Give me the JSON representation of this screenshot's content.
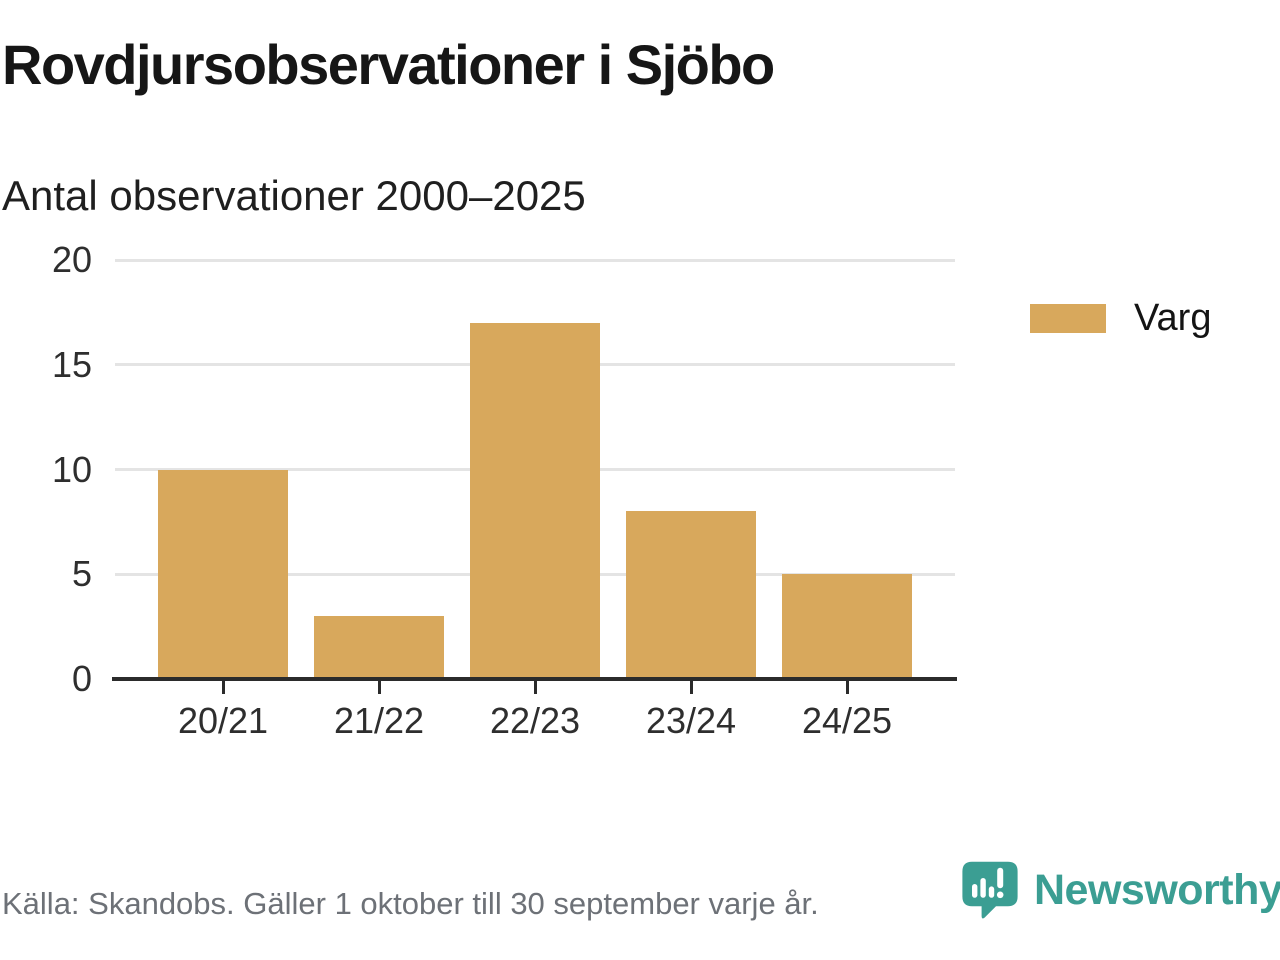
{
  "title": "Rovdjursobservationer i Sjöbo",
  "subtitle": "Antal observationer 2000–2025",
  "chart_data": {
    "type": "bar",
    "title": "Rovdjursobservationer i Sjöbo",
    "subtitle": "Antal observationer 2000–2025",
    "categories": [
      "20/21",
      "21/22",
      "22/23",
      "23/24",
      "24/25"
    ],
    "series": [
      {
        "name": "Varg",
        "values": [
          10,
          3,
          17,
          8,
          5
        ],
        "color": "#d8a85c"
      }
    ],
    "xlabel": "",
    "ylabel": "",
    "ylim": [
      0,
      20
    ],
    "yticks": [
      0,
      5,
      10,
      15,
      20
    ],
    "grid": "horizontal",
    "legend_position": "right"
  },
  "legend": {
    "items": [
      {
        "label": "Varg",
        "color": "#d8a85c"
      }
    ]
  },
  "footer": {
    "source": "Källa: Skandobs. Gäller 1 oktober till 30 september varje år."
  },
  "brand": {
    "name": "Newsworthy",
    "icon": "newsworthy-speech-bubble-bar-chart-icon",
    "color": "#3b9e93"
  },
  "colors": {
    "bar": "#d8a85c",
    "teal": "#3b9e93",
    "grid": "#e4e4e4",
    "axis": "#2b2b2b",
    "title_text": "#161616",
    "muted_text": "#6d7177"
  }
}
